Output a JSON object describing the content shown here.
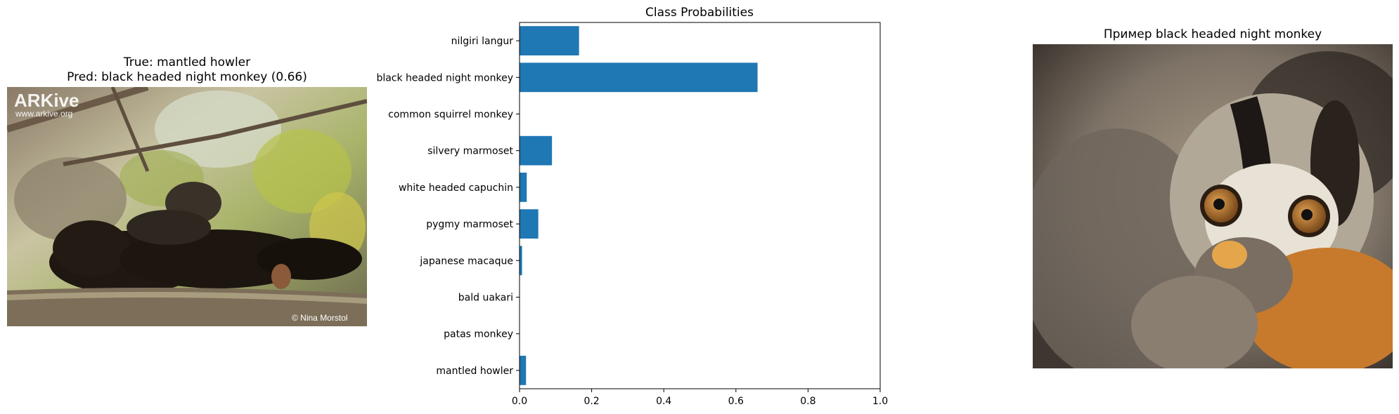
{
  "left_panel": {
    "title_line1": "True: mantled howler",
    "title_line2": "Pred: black headed night monkey (0.66)",
    "watermark_logo": "ARKive",
    "watermark_url": "www.arkive.org",
    "copyright": "© Nina Morstol"
  },
  "right_panel": {
    "title": "Пример black headed night monkey"
  },
  "colors": {
    "bar": "#1f77b4"
  },
  "chart_data": {
    "type": "bar",
    "orientation": "horizontal",
    "title": "Class Probabilities",
    "categories": [
      "mantled howler",
      "patas monkey",
      "bald uakari",
      "japanese macaque",
      "pygmy marmoset",
      "white headed capuchin",
      "silvery marmoset",
      "common squirrel monkey",
      "black headed night monkey",
      "nilgiri langur"
    ],
    "values": [
      0.018,
      0.0,
      0.0,
      0.007,
      0.052,
      0.02,
      0.09,
      0.001,
      0.66,
      0.165
    ],
    "xlim": [
      0,
      1.0
    ],
    "xticks": [
      "0.0",
      "0.2",
      "0.4",
      "0.6",
      "0.8",
      "1.0"
    ],
    "grid": false
  }
}
